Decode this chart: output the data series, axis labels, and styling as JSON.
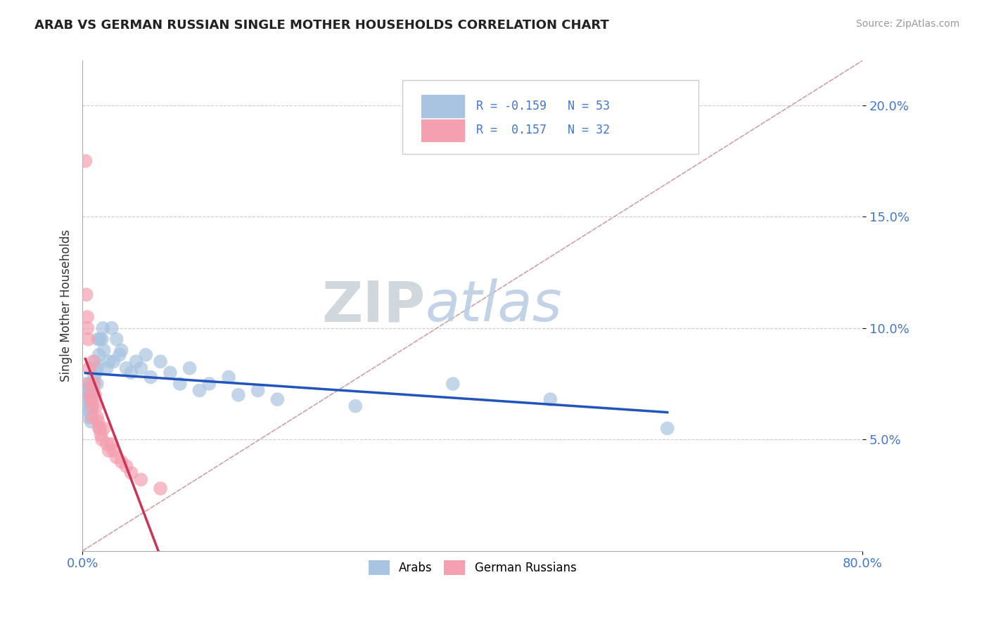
{
  "title": "ARAB VS GERMAN RUSSIAN SINGLE MOTHER HOUSEHOLDS CORRELATION CHART",
  "source_text": "Source: ZipAtlas.com",
  "ylabel": "Single Mother Households",
  "xlim": [
    0.0,
    0.8
  ],
  "ylim": [
    0.0,
    0.22
  ],
  "xticks": [
    0.0,
    0.8
  ],
  "xticklabels": [
    "0.0%",
    "80.0%"
  ],
  "yticks": [
    0.05,
    0.1,
    0.15,
    0.2
  ],
  "yticklabels": [
    "5.0%",
    "10.0%",
    "15.0%",
    "20.0%"
  ],
  "arab_color": "#a8c4e0",
  "german_color": "#f4a0b0",
  "arab_line_color": "#2255bb",
  "german_line_color": "#cc3355",
  "diag_line_color": "#d0a0a8",
  "legend_R_arab": "R = -0.159",
  "legend_N_arab": "N = 53",
  "legend_R_german": "R =  0.157",
  "legend_N_german": "N = 32",
  "watermark_ZIP": "ZIP",
  "watermark_atlas": "atlas",
  "arab_x": [
    0.003,
    0.004,
    0.005,
    0.005,
    0.006,
    0.006,
    0.007,
    0.007,
    0.008,
    0.008,
    0.009,
    0.01,
    0.01,
    0.01,
    0.011,
    0.012,
    0.013,
    0.014,
    0.015,
    0.015,
    0.016,
    0.017,
    0.018,
    0.02,
    0.021,
    0.022,
    0.025,
    0.027,
    0.03,
    0.032,
    0.035,
    0.038,
    0.04,
    0.045,
    0.05,
    0.055,
    0.06,
    0.065,
    0.07,
    0.08,
    0.09,
    0.1,
    0.11,
    0.12,
    0.13,
    0.15,
    0.16,
    0.18,
    0.2,
    0.28,
    0.38,
    0.48,
    0.6
  ],
  "arab_y": [
    0.075,
    0.072,
    0.068,
    0.073,
    0.065,
    0.06,
    0.07,
    0.064,
    0.068,
    0.062,
    0.058,
    0.075,
    0.07,
    0.065,
    0.072,
    0.078,
    0.085,
    0.08,
    0.082,
    0.075,
    0.095,
    0.088,
    0.095,
    0.095,
    0.1,
    0.09,
    0.082,
    0.085,
    0.1,
    0.085,
    0.095,
    0.088,
    0.09,
    0.082,
    0.08,
    0.085,
    0.082,
    0.088,
    0.078,
    0.085,
    0.08,
    0.075,
    0.082,
    0.072,
    0.075,
    0.078,
    0.07,
    0.072,
    0.068,
    0.065,
    0.075,
    0.068,
    0.055
  ],
  "german_x": [
    0.003,
    0.004,
    0.005,
    0.005,
    0.006,
    0.007,
    0.007,
    0.008,
    0.009,
    0.01,
    0.01,
    0.011,
    0.012,
    0.013,
    0.014,
    0.015,
    0.016,
    0.017,
    0.018,
    0.019,
    0.02,
    0.022,
    0.025,
    0.027,
    0.03,
    0.032,
    0.035,
    0.04,
    0.045,
    0.05,
    0.06,
    0.08
  ],
  "german_y": [
    0.175,
    0.115,
    0.105,
    0.1,
    0.095,
    0.082,
    0.075,
    0.07,
    0.068,
    0.065,
    0.06,
    0.085,
    0.075,
    0.07,
    0.065,
    0.06,
    0.058,
    0.055,
    0.055,
    0.052,
    0.05,
    0.055,
    0.048,
    0.045,
    0.048,
    0.045,
    0.042,
    0.04,
    0.038,
    0.035,
    0.032,
    0.028
  ]
}
